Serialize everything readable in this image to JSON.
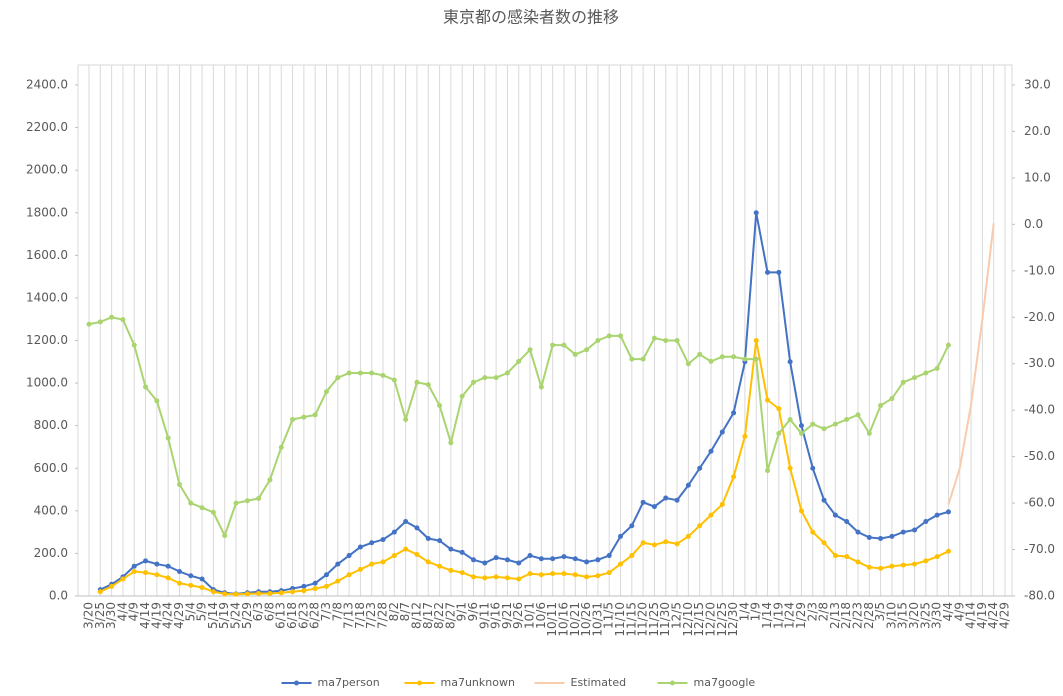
{
  "chart_data": {
    "type": "line",
    "title": "東京都の感染者数の推移",
    "categories": [
      "3/20",
      "3/25",
      "3/30",
      "4/4",
      "4/9",
      "4/14",
      "4/19",
      "4/24",
      "4/29",
      "5/4",
      "5/9",
      "5/14",
      "5/19",
      "5/24",
      "5/29",
      "6/3",
      "6/8",
      "6/13",
      "6/18",
      "6/23",
      "6/28",
      "7/3",
      "7/8",
      "7/13",
      "7/18",
      "7/23",
      "7/28",
      "8/2",
      "8/7",
      "8/12",
      "8/17",
      "8/22",
      "8/27",
      "9/1",
      "9/6",
      "9/11",
      "9/16",
      "9/21",
      "9/26",
      "10/1",
      "10/6",
      "10/11",
      "10/16",
      "10/21",
      "10/26",
      "10/31",
      "11/5",
      "11/10",
      "11/15",
      "11/20",
      "11/25",
      "11/30",
      "12/5",
      "12/10",
      "12/15",
      "12/20",
      "12/25",
      "12/30",
      "1/4",
      "1/9",
      "1/14",
      "1/19",
      "1/24",
      "1/29",
      "2/3",
      "2/8",
      "2/13",
      "2/18",
      "2/23",
      "2/28",
      "3/5",
      "3/10",
      "3/15",
      "3/20",
      "3/25",
      "3/30",
      "4/4",
      "4/9",
      "4/14",
      "4/19",
      "4/24",
      "4/29"
    ],
    "series": [
      {
        "name": "ma7person",
        "color": "#4472c4",
        "values": [
          null,
          30,
          55,
          90,
          140,
          165,
          150,
          140,
          115,
          95,
          80,
          30,
          15,
          10,
          15,
          20,
          20,
          25,
          35,
          45,
          60,
          100,
          150,
          190,
          230,
          250,
          265,
          300,
          350,
          320,
          270,
          260,
          220,
          205,
          170,
          155,
          180,
          170,
          155,
          190,
          175,
          175,
          185,
          175,
          160,
          170,
          190,
          280,
          330,
          440,
          420,
          460,
          450,
          520,
          600,
          680,
          770,
          860,
          1100,
          1800,
          1520,
          1520,
          1100,
          800,
          600,
          450,
          380,
          350,
          300,
          275,
          270,
          280,
          300,
          310,
          350,
          380,
          395,
          null,
          null,
          null,
          null,
          null
        ]
      },
      {
        "name": "ma7unknown",
        "color": "#ffc000",
        "values": [
          null,
          20,
          45,
          80,
          115,
          110,
          100,
          85,
          60,
          50,
          40,
          20,
          10,
          8,
          10,
          12,
          12,
          15,
          20,
          25,
          35,
          45,
          70,
          100,
          125,
          150,
          160,
          190,
          220,
          195,
          160,
          140,
          120,
          110,
          90,
          85,
          90,
          85,
          80,
          105,
          100,
          105,
          105,
          100,
          90,
          95,
          110,
          150,
          190,
          250,
          240,
          255,
          245,
          280,
          330,
          380,
          430,
          560,
          750,
          1200,
          920,
          880,
          600,
          400,
          300,
          250,
          190,
          185,
          160,
          135,
          130,
          140,
          145,
          150,
          165,
          185,
          210,
          null,
          null,
          null,
          null,
          null
        ]
      },
      {
        "name": "Estimated",
        "color": "#f8cbad",
        "markers": false,
        "values": [
          null,
          null,
          null,
          null,
          null,
          null,
          null,
          null,
          null,
          null,
          null,
          null,
          null,
          null,
          null,
          null,
          null,
          null,
          null,
          null,
          null,
          null,
          null,
          null,
          null,
          null,
          null,
          null,
          null,
          null,
          null,
          null,
          null,
          null,
          null,
          null,
          null,
          null,
          null,
          null,
          null,
          null,
          null,
          null,
          null,
          null,
          null,
          null,
          null,
          null,
          null,
          null,
          null,
          null,
          null,
          null,
          null,
          null,
          null,
          null,
          null,
          null,
          null,
          null,
          null,
          null,
          null,
          null,
          null,
          null,
          null,
          null,
          null,
          null,
          null,
          null,
          430,
          600,
          900,
          1300,
          1750,
          null
        ]
      },
      {
        "name": "ma7google",
        "color": "#a9d46f",
        "axis": "y2",
        "values": [
          -21.5,
          -21,
          -20,
          -20.5,
          -26,
          -35,
          -38,
          -46,
          -56,
          -60,
          -61,
          -62,
          -67,
          -60,
          -59.5,
          -59,
          -55,
          -48,
          -42,
          -41.5,
          -41,
          -36,
          -33,
          -32,
          -32,
          -32,
          -32.5,
          -33.5,
          -42,
          -34,
          -34.5,
          -39,
          -47,
          -37,
          -34,
          -33,
          -33,
          -32,
          -29.5,
          -27,
          -35,
          -26,
          -26,
          -28,
          -27,
          -25,
          -24,
          -24,
          -29,
          -29,
          -24.5,
          -25,
          -25,
          -30,
          -28,
          -29.5,
          -28.5,
          -28.5,
          -29,
          -29,
          -53,
          -45,
          -42,
          -45,
          -43,
          -44,
          -43,
          -42,
          -41,
          -45,
          -39,
          -37.5,
          -34,
          -33,
          -32,
          -31,
          -26,
          null,
          null,
          null,
          null,
          null
        ]
      }
    ],
    "ylim": [
      0,
      2400
    ],
    "yticks": [
      {
        "value": 0,
        "label": "0.0"
      },
      {
        "value": 200,
        "label": "200.0"
      },
      {
        "value": 400,
        "label": "400.0"
      },
      {
        "value": 600,
        "label": "600.0"
      },
      {
        "value": 800,
        "label": "800.0"
      },
      {
        "value": 1000,
        "label": "1000.0"
      },
      {
        "value": 1200,
        "label": "1200.0"
      },
      {
        "value": 1400,
        "label": "1400.0"
      },
      {
        "value": 1600,
        "label": "1600.0"
      },
      {
        "value": 1800,
        "label": "1800.0"
      },
      {
        "value": 2000,
        "label": "2000.0"
      },
      {
        "value": 2200,
        "label": "2200.0"
      },
      {
        "value": 2400,
        "label": "2400.0"
      }
    ],
    "y2lim": [
      -80,
      30
    ],
    "y2ticks": [
      {
        "value": -80,
        "label": "-80.0"
      },
      {
        "value": -70,
        "label": "-70.0"
      },
      {
        "value": -60,
        "label": "-60.0"
      },
      {
        "value": -50,
        "label": "-50.0"
      },
      {
        "value": -40,
        "label": "-40.0"
      },
      {
        "value": -30,
        "label": "-30.0"
      },
      {
        "value": -20,
        "label": "-20.0"
      },
      {
        "value": -10,
        "label": "-10.0"
      },
      {
        "value": 0,
        "label": "0.0"
      },
      {
        "value": 10,
        "label": "10.0"
      },
      {
        "value": 20,
        "label": "20.0"
      },
      {
        "value": 30,
        "label": "30.0"
      }
    ],
    "grid": "x",
    "legend": "bottom"
  }
}
